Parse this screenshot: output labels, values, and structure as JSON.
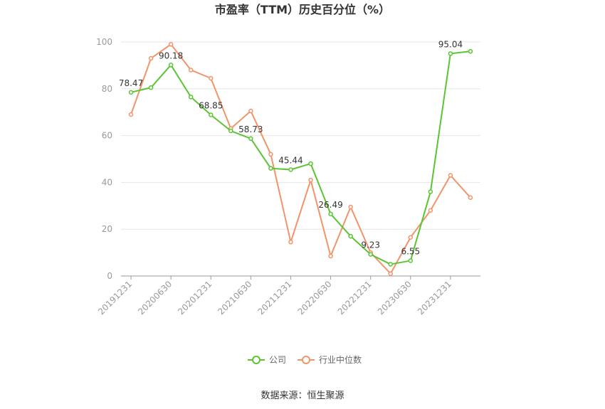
{
  "chart_data": {
    "type": "line",
    "title": "市盈率（TTM）历史百分位（%）",
    "ylim": [
      0,
      100
    ],
    "yticks": [
      0,
      20,
      40,
      60,
      80,
      100
    ],
    "x_tick_labels": [
      "20191231",
      "20200630",
      "20201231",
      "20210630",
      "20211231",
      "20220630",
      "20221231",
      "20230630",
      "20231231"
    ],
    "grid": true,
    "legend_position": "bottom",
    "series": [
      {
        "name": "公司",
        "color": "#5ac532",
        "values": [
          78.47,
          80.5,
          90.18,
          76.5,
          68.85,
          62.0,
          58.73,
          46.0,
          45.44,
          48.0,
          26.49,
          17.0,
          9.23,
          5.0,
          6.55,
          36.0,
          95.04,
          96.0
        ],
        "labels": [
          "78.47",
          "",
          "90.18",
          "",
          "68.85",
          "",
          "58.73",
          "",
          "45.44",
          "",
          "26.49",
          "",
          "9.23",
          "",
          "6.55",
          "",
          "95.04",
          ""
        ]
      },
      {
        "name": "行业中位数",
        "color": "#f2946a",
        "values": [
          69.0,
          93.0,
          99.0,
          88.0,
          84.5,
          63.0,
          70.5,
          52.0,
          14.5,
          41.0,
          8.5,
          29.5,
          10.0,
          1.0,
          16.5,
          28.0,
          43.0,
          33.5
        ],
        "labels": []
      }
    ]
  },
  "source_text": "数据来源：恒生聚源"
}
